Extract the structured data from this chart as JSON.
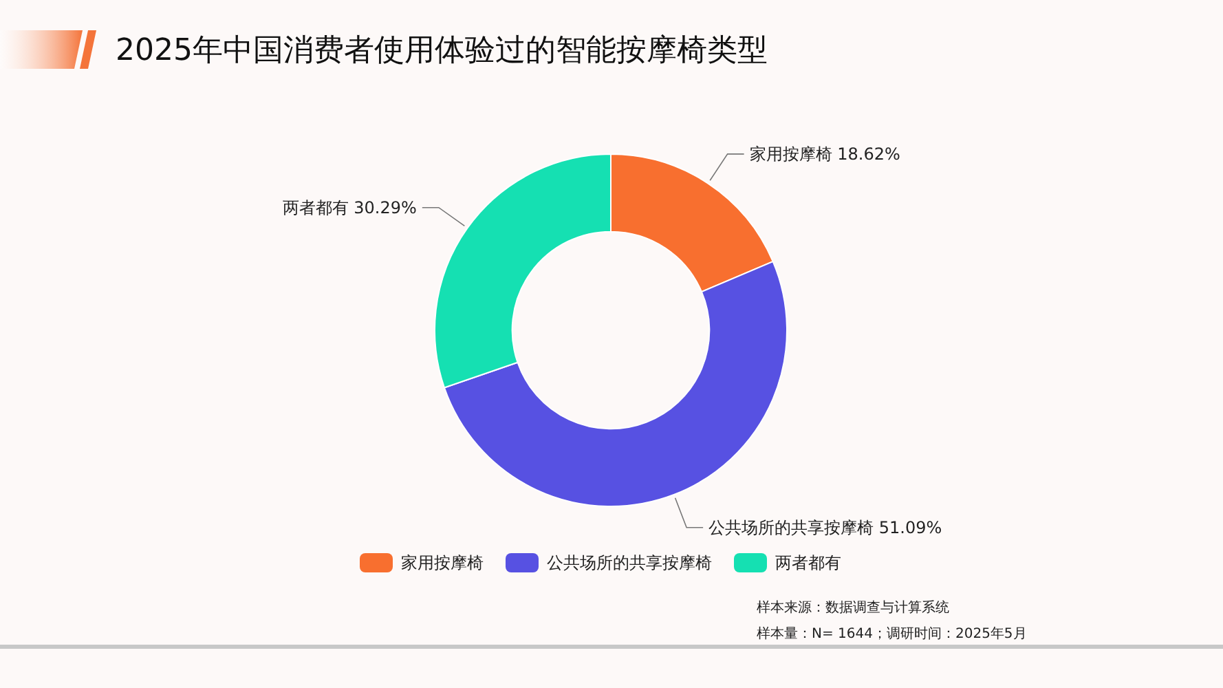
{
  "chart_data": {
    "type": "donut",
    "title": "2025年中国消费者使用体验过的智能按摩椅类型",
    "categories": [
      "家用按摩椅",
      "公共场所的共享按摩椅",
      "两者都有"
    ],
    "values": [
      18.62,
      51.09,
      30.29
    ],
    "colors": [
      "#f86f2f",
      "#5751e2",
      "#15e0b2"
    ],
    "value_labels": [
      "18.62%",
      "51.09%",
      "30.29%"
    ],
    "legend": "bottom",
    "annotations": [
      "样本来源：数据调查与计算系统",
      "样本量：N= 1644；调研时间：2025年5月"
    ]
  }
}
